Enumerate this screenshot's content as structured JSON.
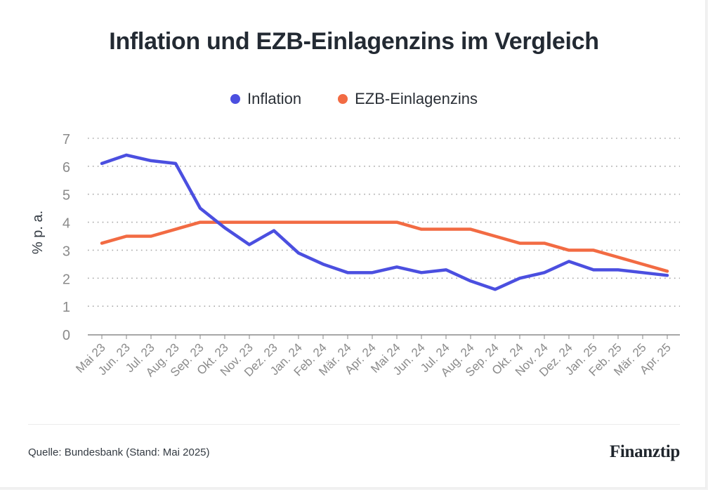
{
  "chart_data": {
    "type": "line",
    "title": "Inflation und EZB-Einlagenzins im Vergleich",
    "xlabel": "",
    "ylabel": "% p. a.",
    "ylim": [
      0,
      7
    ],
    "yticks": [
      "0",
      "1",
      "2",
      "3",
      "4",
      "5",
      "6",
      "7"
    ],
    "grid": true,
    "legend_position": "top-center",
    "categories": [
      "Mai 23",
      "Jun. 23",
      "Jul. 23",
      "Aug. 23",
      "Sep. 23",
      "Okt. 23",
      "Nov. 23",
      "Dez. 23",
      "Jan. 24",
      "Feb. 24",
      "Mär. 24",
      "Apr. 24",
      "Mai 24",
      "Jun. 24",
      "Jul. 24",
      "Aug. 24",
      "Sep. 24",
      "Okt. 24",
      "Nov. 24",
      "Dez. 24",
      "Jan. 25",
      "Feb. 25",
      "Mär. 25",
      "Apr. 25"
    ],
    "series": [
      {
        "name": "Inflation",
        "color": "#4b4fe0",
        "values": [
          6.1,
          6.4,
          6.2,
          6.1,
          4.5,
          3.8,
          3.2,
          3.7,
          2.9,
          2.5,
          2.2,
          2.2,
          2.4,
          2.2,
          2.3,
          1.9,
          1.6,
          2.0,
          2.2,
          2.6,
          2.3,
          2.3,
          2.2,
          2.1
        ]
      },
      {
        "name": "EZB-Einlagenzins",
        "color": "#f26b43",
        "values": [
          3.25,
          3.5,
          3.5,
          3.75,
          4.0,
          4.0,
          4.0,
          4.0,
          4.0,
          4.0,
          4.0,
          4.0,
          4.0,
          3.75,
          3.75,
          3.75,
          3.5,
          3.25,
          3.25,
          3.0,
          3.0,
          2.75,
          2.5,
          2.25
        ]
      }
    ]
  },
  "footer": {
    "source": "Quelle: Bundesbank (Stand: Mai 2025)",
    "brand": "Finanztip"
  }
}
